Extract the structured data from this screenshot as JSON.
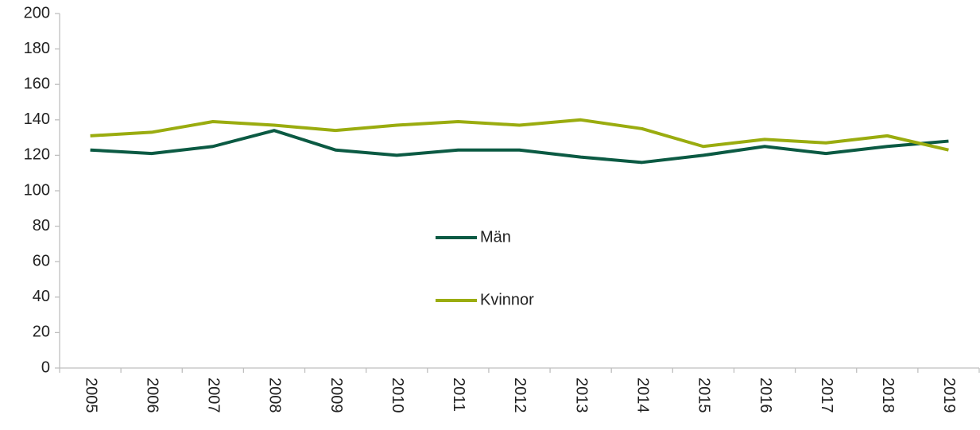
{
  "chart_data": {
    "type": "line",
    "categories": [
      "2005",
      "2006",
      "2007",
      "2008",
      "2009",
      "2010",
      "2011",
      "2012",
      "2013",
      "2014",
      "2015",
      "2016",
      "2017",
      "2018",
      "2019"
    ],
    "series": [
      {
        "name": "Män",
        "color": "#0b5a43",
        "values": [
          123,
          121,
          125,
          134,
          123,
          120,
          123,
          123,
          119,
          116,
          120,
          125,
          121,
          125,
          128
        ]
      },
      {
        "name": "Kvinnor",
        "color": "#9aac0f",
        "values": [
          131,
          133,
          139,
          137,
          134,
          137,
          139,
          137,
          140,
          135,
          125,
          129,
          127,
          131,
          123
        ]
      }
    ],
    "ylim": [
      0,
      200
    ],
    "yticks": [
      0,
      20,
      40,
      60,
      80,
      100,
      120,
      140,
      160,
      180,
      200
    ],
    "grid": false,
    "legend": "center"
  }
}
